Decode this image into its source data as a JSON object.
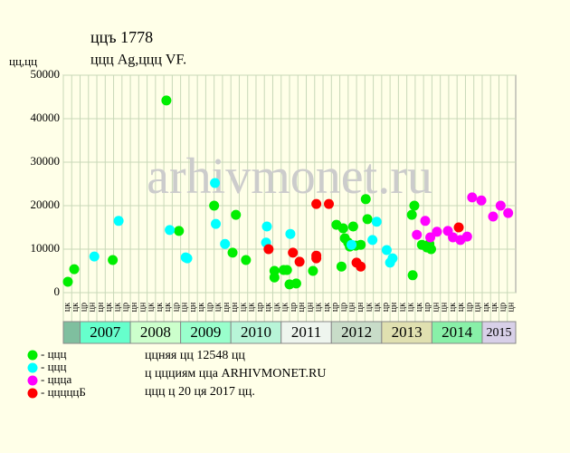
{
  "chart_data": {
    "type": "scatter",
    "title": "ццъ 1778",
    "subtitle": "ццц Ag,ццц VF.",
    "y_label": "цц,цц",
    "watermark": "arhivmonet.ru",
    "xlim": [
      0,
      54
    ],
    "ylim": [
      0,
      50000
    ],
    "yticks": [
      0,
      10000,
      20000,
      30000,
      40000,
      50000
    ],
    "grid": true,
    "categories": [
      "цк",
      "цк",
      "цр",
      "цн",
      "цн",
      "цк",
      "цк",
      "цр",
      "цн",
      "цн",
      "цк",
      "цк",
      "цк",
      "цр",
      "цн",
      "цн",
      "цк",
      "цр",
      "цк",
      "цн",
      "цн",
      "цк",
      "цк",
      "цр",
      "цк",
      "цк",
      "цк",
      "цр",
      "цн",
      "цн",
      "цк",
      "цк",
      "цр",
      "цр",
      "цн",
      "цн",
      "цк",
      "цк",
      "цр",
      "цн",
      "цк",
      "цк",
      "цк",
      "цр",
      "цн",
      "цн",
      "цк",
      "цк",
      "цр",
      "цн",
      "цк",
      "цк",
      "цр",
      "цн"
    ],
    "years": [
      {
        "label": null,
        "from": 0,
        "to": 2,
        "color": "#7fbf9f"
      },
      {
        "label": "2007",
        "from": 2,
        "to": 8,
        "color": "#66ffcc"
      },
      {
        "label": "2008",
        "from": 8,
        "to": 14,
        "color": "#ccffcc"
      },
      {
        "label": "2009",
        "from": 14,
        "to": 20,
        "color": "#99ffcc"
      },
      {
        "label": "2010",
        "from": 20,
        "to": 26,
        "color": "#b8f5d8"
      },
      {
        "label": "2011",
        "from": 26,
        "to": 32,
        "color": "#eef5ee"
      },
      {
        "label": "2012",
        "from": 32,
        "to": 38,
        "color": "#c8dcc8"
      },
      {
        "label": "2013",
        "from": 38,
        "to": 44,
        "color": "#e0e0b0"
      },
      {
        "label": "2014",
        "from": 44,
        "to": 50,
        "color": "#88f0a8"
      },
      {
        "label": "2015",
        "from": 50,
        "to": 54,
        "color": "#d8d0e8"
      }
    ],
    "series": [
      {
        "name": "- ццц",
        "color": "#00ee00",
        "x": [
          0.54,
          1.3,
          5.9,
          12.3,
          13.8,
          18.0,
          20.6,
          20.2,
          21.8,
          25.2,
          25.2,
          26.3,
          26.7,
          27.0,
          27.8,
          29.8,
          32.6,
          33.4,
          33.6,
          34.0,
          34.2,
          34.6,
          34.9,
          35.5,
          36.1,
          36.3,
          33.2,
          41.7,
          41.6,
          41.9,
          42.8,
          43.4,
          43.7,
          43.9
        ],
        "values": [
          2500,
          5400,
          7500,
          44200,
          14200,
          20000,
          17900,
          9200,
          7500,
          5000,
          3500,
          5200,
          5200,
          1900,
          2100,
          5000,
          15600,
          14800,
          12500,
          11500,
          10600,
          15200,
          10800,
          11000,
          21500,
          16900,
          6000,
          4000,
          17900,
          20000,
          11000,
          10400,
          11200,
          10000
        ]
      },
      {
        "name": "- ццц",
        "color": "#00ffff",
        "x": [
          3.7,
          6.6,
          12.7,
          14.6,
          14.8,
          18.1,
          18.2,
          19.3,
          24.3,
          24.2,
          27.1,
          34.4,
          36.9,
          37.4,
          38.6,
          39.0,
          39.3
        ],
        "values": [
          8300,
          16500,
          14400,
          8100,
          7900,
          25200,
          15800,
          11200,
          15200,
          11500,
          13500,
          11000,
          12100,
          16300,
          9800,
          6900,
          7900
        ]
      },
      {
        "name": "- ццца",
        "color": "#ff00ff",
        "x": [
          42.2,
          43.2,
          43.8,
          44.6,
          45.9,
          46.5,
          47.4,
          48.2,
          48.8,
          49.9,
          51.3,
          52.2,
          53.1
        ],
        "values": [
          13300,
          16500,
          12700,
          14000,
          14200,
          12700,
          12100,
          12900,
          21900,
          21200,
          17500,
          20000,
          18300
        ]
      },
      {
        "name": "- цццццБ",
        "color": "#ff0000",
        "x": [
          24.5,
          27.4,
          28.2,
          30.2,
          30.2,
          30.2,
          31.7,
          35.0,
          35.5,
          47.2
        ],
        "values": [
          10000,
          9200,
          7100,
          20400,
          8500,
          7900,
          20400,
          6900,
          6000,
          15000
        ]
      }
    ],
    "notes": [
      "ццняя цц 12548 цц",
      "ц ццциям цца ARHIVMONET.RU",
      "ццц ц 20 ця 2017 цц."
    ]
  }
}
